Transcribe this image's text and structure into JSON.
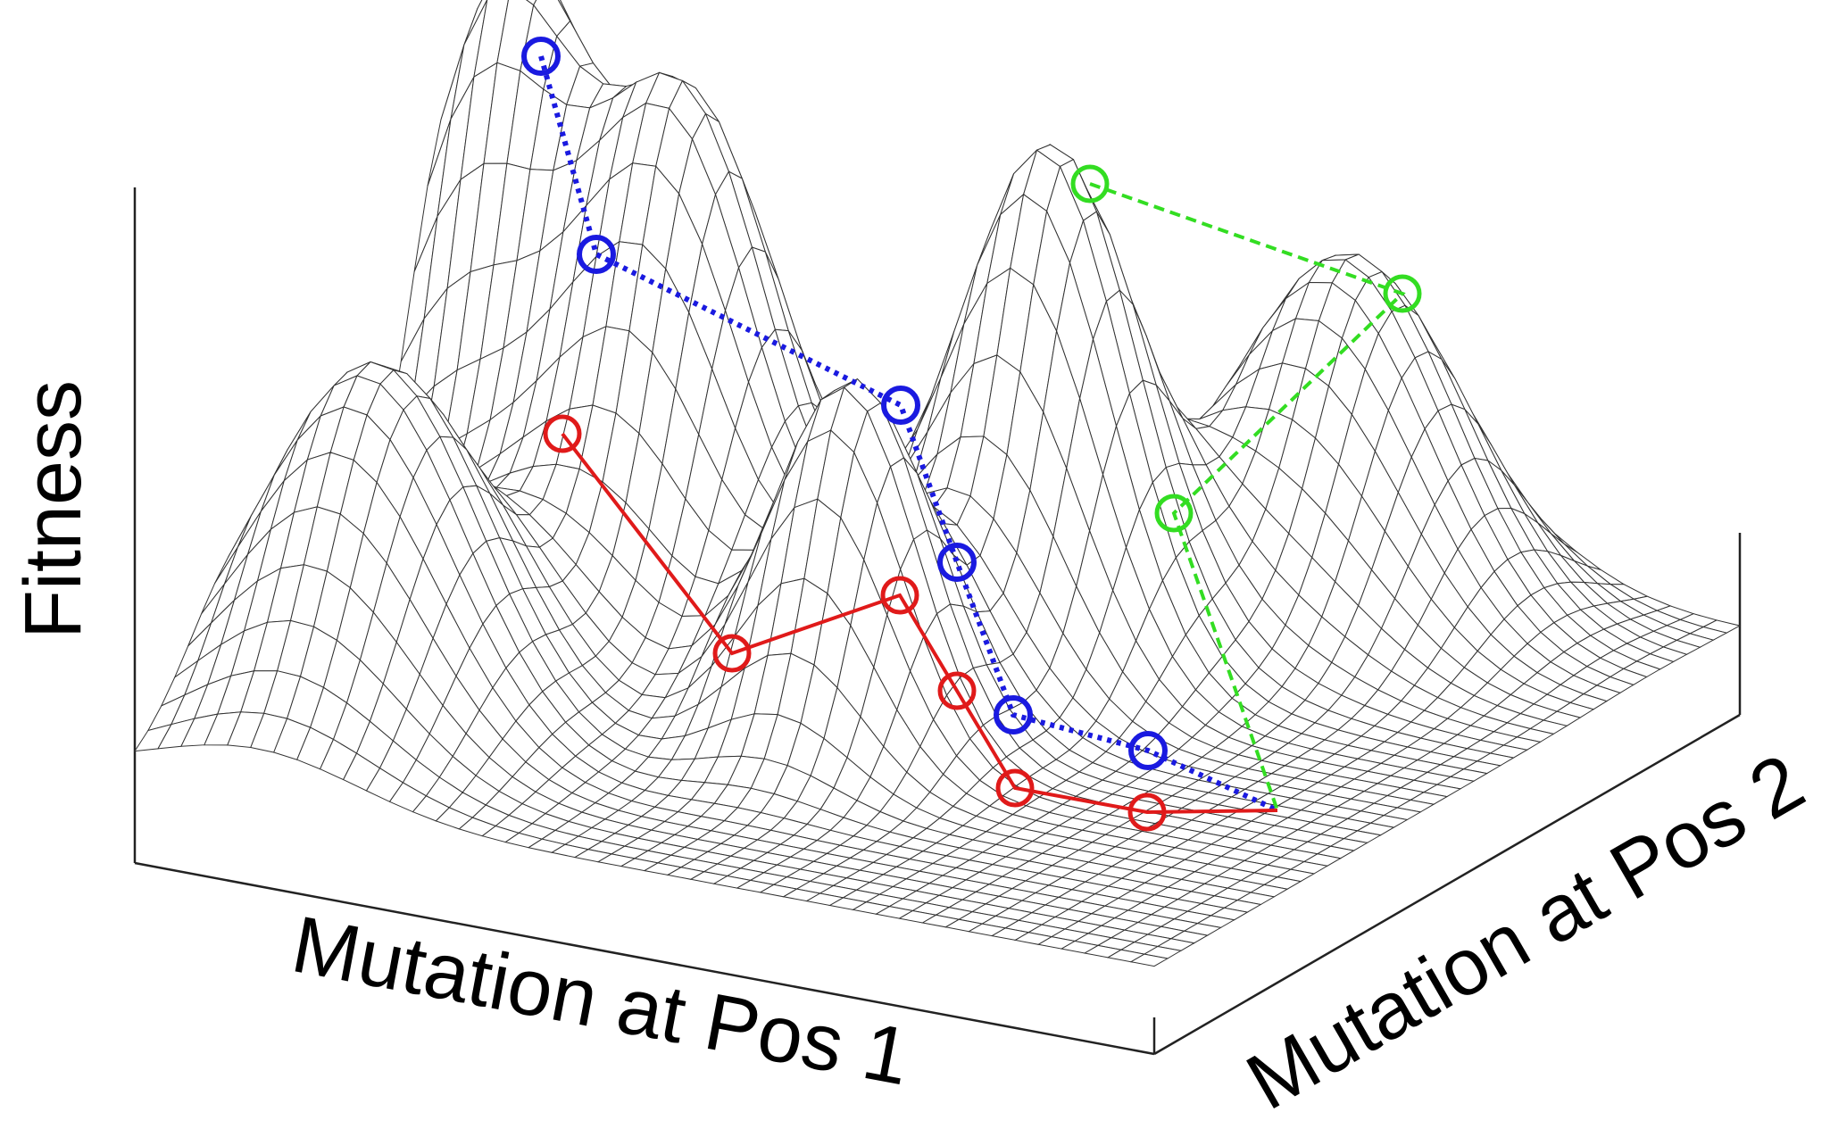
{
  "labels": {
    "z_axis": "Fitness",
    "x_axis": "Mutation at Pos 1",
    "y_axis": "Mutation at Pos 2"
  }
}
